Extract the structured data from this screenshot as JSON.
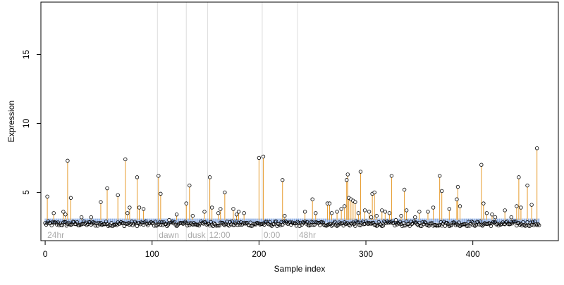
{
  "chart_data": {
    "type": "scatter",
    "title": "",
    "xlabel": "Sample index",
    "ylabel": "Expression",
    "xlim": [
      -4,
      480
    ],
    "ylim": [
      1.5,
      18.8
    ],
    "x_ticks": [
      0,
      100,
      200,
      300,
      400
    ],
    "y_ticks": [
      5,
      10,
      15
    ],
    "baseline": 3.0,
    "grid": false,
    "colors": {
      "stem": "#e69a2b",
      "baseline_tick": "#7ea3e0",
      "point_stroke": "#000000",
      "divider": "#dddddd",
      "section_label": "#aaaaaa"
    },
    "dividers": [
      {
        "x": 105,
        "label": "dawn"
      },
      {
        "x": 132,
        "label": "dusk"
      },
      {
        "x": 152,
        "label": "12:00"
      },
      {
        "x": 203,
        "label": "0:00"
      },
      {
        "x": 236,
        "label": "48hr"
      }
    ],
    "start_label": "24hr",
    "high_points": [
      [
        2,
        4.7
      ],
      [
        8,
        3.5
      ],
      [
        17,
        3.6
      ],
      [
        19,
        3.4
      ],
      [
        21,
        7.3
      ],
      [
        24,
        4.6
      ],
      [
        34,
        3.2
      ],
      [
        43,
        3.2
      ],
      [
        52,
        4.3
      ],
      [
        58,
        5.3
      ],
      [
        68,
        4.8
      ],
      [
        75,
        7.4
      ],
      [
        77,
        3.5
      ],
      [
        79,
        3.9
      ],
      [
        86,
        6.1
      ],
      [
        88,
        3.9
      ],
      [
        92,
        3.8
      ],
      [
        106,
        6.2
      ],
      [
        108,
        4.9
      ],
      [
        116,
        3.0
      ],
      [
        123,
        3.4
      ],
      [
        132,
        4.2
      ],
      [
        135,
        5.5
      ],
      [
        138,
        3.3
      ],
      [
        149,
        3.6
      ],
      [
        154,
        6.1
      ],
      [
        156,
        3.9
      ],
      [
        162,
        3.5
      ],
      [
        164,
        3.8
      ],
      [
        168,
        5.0
      ],
      [
        176,
        3.8
      ],
      [
        179,
        3.4
      ],
      [
        181,
        3.6
      ],
      [
        186,
        3.5
      ],
      [
        200,
        7.5
      ],
      [
        204,
        7.6
      ],
      [
        222,
        5.9
      ],
      [
        224,
        3.3
      ],
      [
        243,
        3.6
      ],
      [
        250,
        4.5
      ],
      [
        253,
        3.5
      ],
      [
        264,
        4.2
      ],
      [
        266,
        4.2
      ],
      [
        268,
        3.5
      ],
      [
        273,
        3.6
      ],
      [
        277,
        3.8
      ],
      [
        280,
        4.0
      ],
      [
        282,
        5.9
      ],
      [
        283,
        6.3
      ],
      [
        284,
        4.6
      ],
      [
        286,
        4.5
      ],
      [
        288,
        4.4
      ],
      [
        290,
        4.3
      ],
      [
        293,
        3.5
      ],
      [
        295,
        6.5
      ],
      [
        299,
        3.7
      ],
      [
        303,
        3.6
      ],
      [
        305,
        3.2
      ],
      [
        306,
        4.9
      ],
      [
        308,
        5.0
      ],
      [
        310,
        3.3
      ],
      [
        315,
        3.7
      ],
      [
        318,
        3.6
      ],
      [
        322,
        3.5
      ],
      [
        324,
        6.2
      ],
      [
        328,
        3.0
      ],
      [
        333,
        3.3
      ],
      [
        336,
        5.2
      ],
      [
        338,
        3.7
      ],
      [
        346,
        3.2
      ],
      [
        350,
        3.6
      ],
      [
        358,
        3.6
      ],
      [
        363,
        3.9
      ],
      [
        369,
        6.2
      ],
      [
        371,
        5.1
      ],
      [
        378,
        3.8
      ],
      [
        385,
        4.5
      ],
      [
        386,
        5.4
      ],
      [
        388,
        4.0
      ],
      [
        408,
        7.0
      ],
      [
        410,
        4.2
      ],
      [
        413,
        3.5
      ],
      [
        418,
        3.4
      ],
      [
        421,
        3.2
      ],
      [
        430,
        3.7
      ],
      [
        436,
        3.2
      ],
      [
        441,
        4.0
      ],
      [
        443,
        6.1
      ],
      [
        445,
        3.9
      ],
      [
        451,
        5.5
      ],
      [
        455,
        4.1
      ],
      [
        460,
        8.2
      ]
    ]
  }
}
